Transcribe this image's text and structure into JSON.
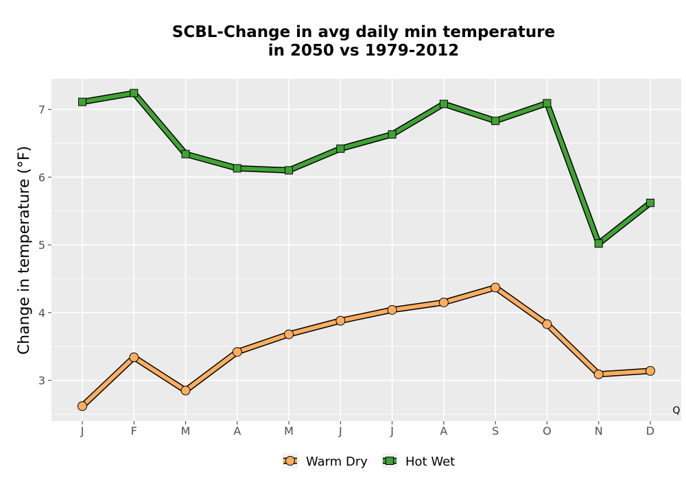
{
  "chart_data": {
    "type": "line",
    "title_line1": "SCBL-Change in avg daily min temperature",
    "title_line2": "in 2050 vs 1979-2012",
    "ylabel": "Change in temperature (°F)",
    "xlabel": "",
    "categories": [
      "J",
      "F",
      "M",
      "A",
      "M",
      "J",
      "J",
      "A",
      "S",
      "O",
      "N",
      "D"
    ],
    "ylim": [
      2.4,
      7.45
    ],
    "yticks": [
      3,
      4,
      5,
      6,
      7
    ],
    "grid": true,
    "legend_position": "bottom",
    "annotation": "Q",
    "series": [
      {
        "name": "Warm Dry",
        "marker": "circle",
        "color": "#fdae61",
        "values": [
          2.62,
          3.34,
          2.85,
          3.42,
          3.68,
          3.88,
          4.04,
          4.15,
          4.37,
          3.83,
          3.09,
          3.14
        ]
      },
      {
        "name": "Hot Wet",
        "marker": "square",
        "color": "#41a335",
        "values": [
          7.11,
          7.24,
          6.34,
          6.13,
          6.1,
          6.42,
          6.63,
          7.08,
          6.83,
          7.09,
          5.02,
          5.62
        ]
      }
    ]
  }
}
